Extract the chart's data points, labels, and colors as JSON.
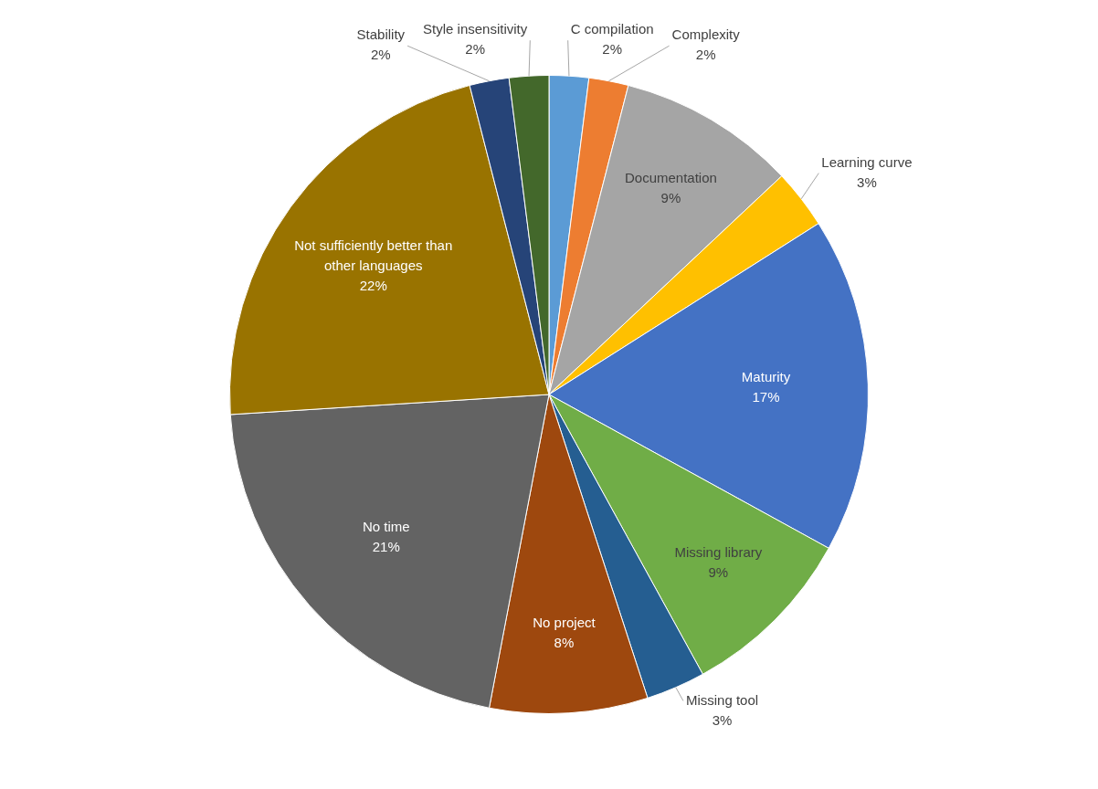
{
  "chart_data": {
    "type": "pie",
    "categories": [
      "C compilation",
      "Complexity",
      "Documentation",
      "Learning curve",
      "Maturity",
      "Missing library",
      "Missing tool",
      "No project",
      "No time",
      "Not sufficiently better than other languages",
      "Stability",
      "Style insensitivity"
    ],
    "values": [
      2,
      2,
      9,
      3,
      17,
      9,
      3,
      8,
      21,
      22,
      2,
      2
    ],
    "colors": [
      "#5b9bd5",
      "#ed7d31",
      "#a5a5a5",
      "#ffc000",
      "#4472c4",
      "#70ad47",
      "#255e91",
      "#9e480e",
      "#636363",
      "#997300",
      "#264478",
      "#43682b"
    ],
    "value_labels": [
      "2%",
      "2%",
      "9%",
      "3%",
      "17%",
      "9%",
      "3%",
      "8%",
      "21%",
      "22%",
      "2%",
      "2%"
    ]
  }
}
